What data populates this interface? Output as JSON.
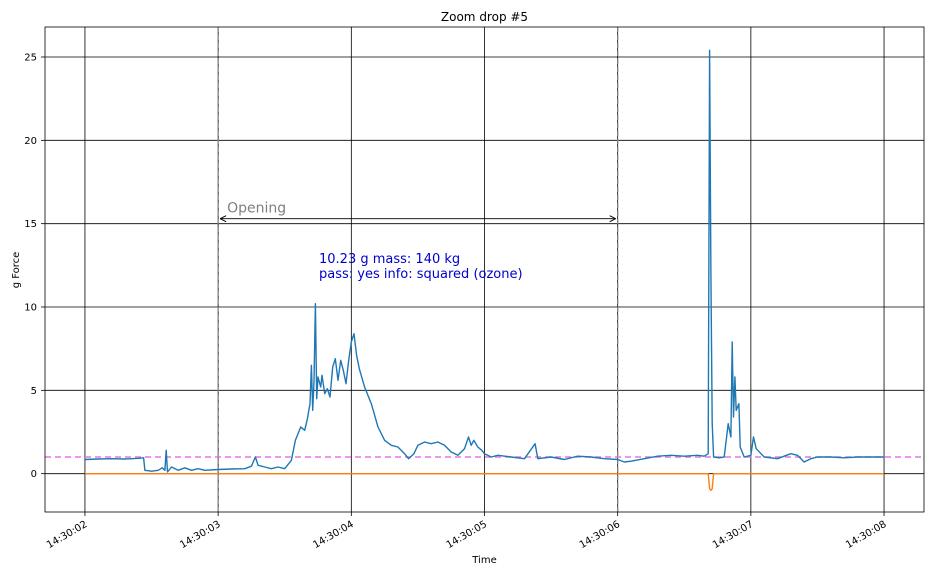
{
  "chart_data": {
    "type": "line",
    "title": "Zoom drop #5",
    "xlabel": "Time",
    "ylabel": "g Force",
    "x_ticks": [
      "14:30:02",
      "14:30:03",
      "14:30:04",
      "14:30:05",
      "14:30:06",
      "14:30:07",
      "14:30:08"
    ],
    "xlim_seconds": [
      1.7,
      8.3
    ],
    "ylim": [
      -2.3,
      26.8
    ],
    "y_ticks": [
      0,
      5,
      10,
      15,
      20,
      25
    ],
    "grid": true,
    "reference_line": {
      "y": 1.0,
      "color": "#e377e3",
      "style": "dashed"
    },
    "span": {
      "label": "Opening",
      "start": "14:30:03",
      "end": "14:30:06",
      "y": 15.3,
      "color": "#808080"
    },
    "annotation": {
      "line1": "10.23 g  mass: 140 kg",
      "line2": "pass: yes  info: squared (ozone)",
      "color": "#0000cc"
    },
    "series": [
      {
        "color": "#1f77b4",
        "points": [
          [
            2.0,
            0.85
          ],
          [
            2.1,
            0.88
          ],
          [
            2.2,
            0.9
          ],
          [
            2.3,
            0.88
          ],
          [
            2.4,
            0.92
          ],
          [
            2.44,
            0.95
          ],
          [
            2.45,
            0.2
          ],
          [
            2.5,
            0.15
          ],
          [
            2.55,
            0.2
          ],
          [
            2.58,
            0.35
          ],
          [
            2.6,
            0.2
          ],
          [
            2.61,
            1.4
          ],
          [
            2.62,
            0.1
          ],
          [
            2.65,
            0.4
          ],
          [
            2.7,
            0.2
          ],
          [
            2.75,
            0.35
          ],
          [
            2.8,
            0.2
          ],
          [
            2.85,
            0.3
          ],
          [
            2.9,
            0.2
          ],
          [
            3.0,
            0.25
          ],
          [
            3.1,
            0.28
          ],
          [
            3.2,
            0.3
          ],
          [
            3.25,
            0.45
          ],
          [
            3.28,
            1.0
          ],
          [
            3.3,
            0.5
          ],
          [
            3.35,
            0.4
          ],
          [
            3.4,
            0.3
          ],
          [
            3.45,
            0.4
          ],
          [
            3.5,
            0.3
          ],
          [
            3.55,
            0.8
          ],
          [
            3.58,
            2.0
          ],
          [
            3.62,
            2.8
          ],
          [
            3.65,
            2.6
          ],
          [
            3.67,
            3.3
          ],
          [
            3.69,
            4.2
          ],
          [
            3.7,
            6.5
          ],
          [
            3.71,
            3.8
          ],
          [
            3.72,
            5.5
          ],
          [
            3.73,
            10.2
          ],
          [
            3.74,
            4.5
          ],
          [
            3.75,
            5.8
          ],
          [
            3.77,
            5.2
          ],
          [
            3.78,
            5.9
          ],
          [
            3.8,
            4.8
          ],
          [
            3.82,
            5.1
          ],
          [
            3.84,
            4.6
          ],
          [
            3.86,
            6.4
          ],
          [
            3.88,
            6.9
          ],
          [
            3.9,
            5.6
          ],
          [
            3.92,
            6.8
          ],
          [
            3.94,
            6.2
          ],
          [
            3.96,
            5.4
          ],
          [
            3.98,
            6.8
          ],
          [
            4.0,
            7.9
          ],
          [
            4.02,
            8.4
          ],
          [
            4.04,
            7.1
          ],
          [
            4.06,
            6.3
          ],
          [
            4.1,
            5.2
          ],
          [
            4.15,
            4.2
          ],
          [
            4.2,
            2.8
          ],
          [
            4.25,
            2.0
          ],
          [
            4.3,
            1.7
          ],
          [
            4.35,
            1.6
          ],
          [
            4.4,
            1.2
          ],
          [
            4.43,
            0.9
          ],
          [
            4.47,
            1.2
          ],
          [
            4.5,
            1.7
          ],
          [
            4.55,
            1.9
          ],
          [
            4.6,
            1.8
          ],
          [
            4.65,
            1.9
          ],
          [
            4.7,
            1.7
          ],
          [
            4.75,
            1.3
          ],
          [
            4.8,
            1.1
          ],
          [
            4.85,
            1.5
          ],
          [
            4.88,
            2.2
          ],
          [
            4.9,
            1.7
          ],
          [
            4.92,
            2.0
          ],
          [
            4.95,
            1.6
          ],
          [
            4.98,
            1.4
          ],
          [
            5.0,
            1.2
          ],
          [
            5.05,
            1.0
          ],
          [
            5.1,
            1.1
          ],
          [
            5.2,
            1.0
          ],
          [
            5.3,
            0.9
          ],
          [
            5.38,
            1.8
          ],
          [
            5.4,
            0.9
          ],
          [
            5.5,
            1.0
          ],
          [
            5.6,
            0.85
          ],
          [
            5.7,
            1.05
          ],
          [
            5.8,
            1.0
          ],
          [
            5.9,
            0.9
          ],
          [
            6.0,
            0.85
          ],
          [
            6.05,
            0.7
          ],
          [
            6.1,
            0.75
          ],
          [
            6.2,
            0.9
          ],
          [
            6.3,
            1.05
          ],
          [
            6.4,
            1.1
          ],
          [
            6.5,
            1.05
          ],
          [
            6.6,
            1.1
          ],
          [
            6.65,
            1.05
          ],
          [
            6.68,
            1.2
          ],
          [
            6.69,
            25.4
          ],
          [
            6.7,
            12.0
          ],
          [
            6.71,
            3.0
          ],
          [
            6.72,
            1.0
          ],
          [
            6.76,
            0.95
          ],
          [
            6.8,
            1.0
          ],
          [
            6.83,
            3.0
          ],
          [
            6.85,
            2.2
          ],
          [
            6.86,
            7.9
          ],
          [
            6.87,
            3.4
          ],
          [
            6.88,
            5.8
          ],
          [
            6.89,
            3.8
          ],
          [
            6.91,
            4.2
          ],
          [
            6.92,
            1.6
          ],
          [
            6.95,
            1.0
          ],
          [
            7.0,
            1.1
          ],
          [
            7.02,
            2.2
          ],
          [
            7.04,
            1.5
          ],
          [
            7.1,
            1.0
          ],
          [
            7.2,
            0.9
          ],
          [
            7.3,
            1.2
          ],
          [
            7.35,
            1.1
          ],
          [
            7.4,
            0.7
          ],
          [
            7.45,
            0.9
          ],
          [
            7.5,
            1.0
          ],
          [
            7.6,
            1.0
          ],
          [
            7.7,
            0.95
          ],
          [
            7.8,
            1.0
          ],
          [
            7.9,
            1.0
          ],
          [
            8.0,
            1.0
          ]
        ]
      },
      {
        "color": "#ff7f0e",
        "points": [
          [
            2.0,
            0.0
          ],
          [
            6.68,
            0.0
          ],
          [
            6.69,
            -0.9
          ],
          [
            6.7,
            -1.0
          ],
          [
            6.71,
            -0.9
          ],
          [
            6.72,
            0.0
          ],
          [
            8.0,
            0.0
          ]
        ]
      }
    ]
  }
}
